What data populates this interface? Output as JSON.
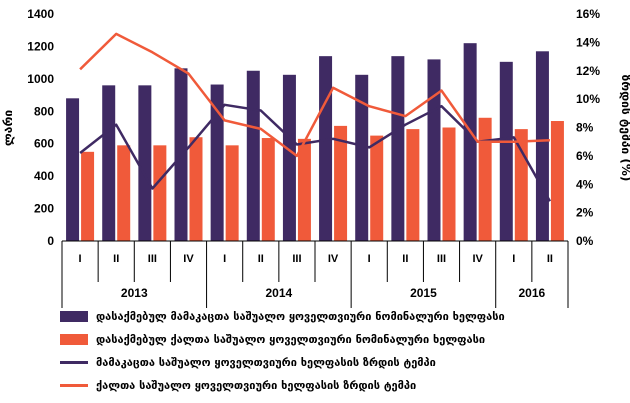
{
  "chart_data": {
    "type": "bar+line",
    "quarters": [
      "I",
      "II",
      "III",
      "IV",
      "I",
      "II",
      "III",
      "IV",
      "I",
      "II",
      "III",
      "IV",
      "I",
      "II"
    ],
    "years": [
      {
        "label": "2013",
        "span": 4
      },
      {
        "label": "2014",
        "span": 4
      },
      {
        "label": "2015",
        "span": 4
      },
      {
        "label": "2016",
        "span": 2
      }
    ],
    "series": [
      {
        "name": "დასაქმებულ მამაკაცთა საშუალო ყოველთვიური ნომინალური ხელფასი",
        "kind": "bar",
        "axis": "left",
        "color": "#3f2a63",
        "values": [
          880,
          960,
          960,
          1065,
          965,
          1050,
          1025,
          1140,
          1025,
          1140,
          1120,
          1220,
          1105,
          1170
        ]
      },
      {
        "name": "დასაქმებულ ქალთა საშუალო ყოველთვიური ნომინალური ხელფასი",
        "kind": "bar",
        "axis": "left",
        "color": "#f05a3a",
        "values": [
          550,
          590,
          590,
          640,
          590,
          635,
          630,
          710,
          650,
          690,
          700,
          760,
          690,
          740
        ]
      },
      {
        "name": "მამაკაცთა საშუალო ყოველთვიური ხელფასის ზრდის ტემპი",
        "kind": "line",
        "axis": "right",
        "color": "#3f2a63",
        "values": [
          6.2,
          8.2,
          3.7,
          6.6,
          9.6,
          9.2,
          6.8,
          7.2,
          6.6,
          8.2,
          9.5,
          7.0,
          7.3,
          2.8
        ]
      },
      {
        "name": "ქალთა საშუალო ყოველთვიური ხელფასის ზრდის ტემპი",
        "kind": "line",
        "axis": "right",
        "color": "#f05a3a",
        "values": [
          12.1,
          14.6,
          13.3,
          11.8,
          8.5,
          7.9,
          6.0,
          10.8,
          9.5,
          8.8,
          10.6,
          7.0,
          7.0,
          7.1
        ]
      }
    ],
    "ylabel_left": "ლარი",
    "ylabel_right": "ზრდის ტემპი (%)",
    "ylim_left": [
      0,
      1400
    ],
    "ylim_right": [
      0,
      16
    ],
    "yticks_left": [
      "0",
      "200",
      "400",
      "600",
      "800",
      "1000",
      "1200",
      "1400"
    ],
    "yticks_right": [
      "0%",
      "2%",
      "4%",
      "6%",
      "8%",
      "10%",
      "12%",
      "14%",
      "16%"
    ],
    "grid": false,
    "legend_position": "bottom"
  }
}
